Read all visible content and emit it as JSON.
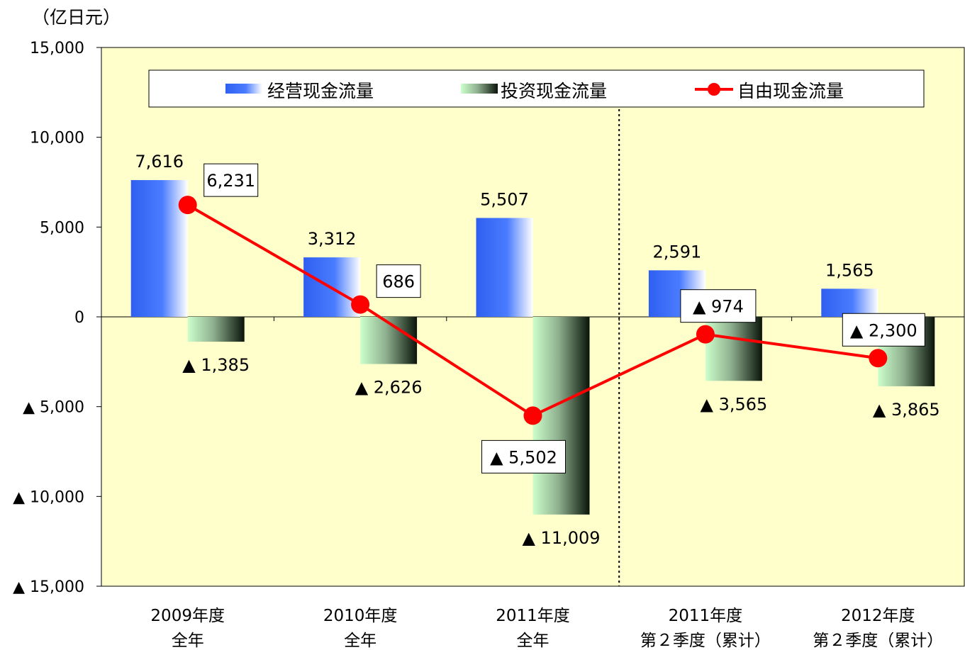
{
  "chart_data": {
    "type": "bar",
    "unit_label": "（亿日元）",
    "ylim": [
      -15000,
      15000
    ],
    "y_ticks": [
      {
        "value": 15000,
        "label": "15,000"
      },
      {
        "value": 10000,
        "label": "10,000"
      },
      {
        "value": 5000,
        "label": "5,000"
      },
      {
        "value": 0,
        "label": "0"
      },
      {
        "value": -5000,
        "label": "▲ 5,000"
      },
      {
        "value": -10000,
        "label": "▲ 10,000"
      },
      {
        "value": -15000,
        "label": "▲ 15,000"
      }
    ],
    "categories": [
      {
        "line1": "2009年度",
        "line2": "全年"
      },
      {
        "line1": "2010年度",
        "line2": "全年"
      },
      {
        "line1": "2011年度",
        "line2": "全年"
      },
      {
        "line1": "2011年度",
        "line2": "第２季度（累计）"
      },
      {
        "line1": "2012年度",
        "line2": "第２季度（累计）"
      }
    ],
    "legend_position": "top",
    "divider_after_category": 2,
    "series": [
      {
        "name": "经营现金流量",
        "type": "bar",
        "color": "#3366ff",
        "values": [
          7616,
          3312,
          5507,
          2591,
          1565
        ],
        "labels": [
          "7,616",
          "3,312",
          "5,507",
          "2,591",
          "1,565"
        ]
      },
      {
        "name": "投资现金流量",
        "type": "bar",
        "color": "#1a2a1a",
        "values": [
          -1385,
          -2626,
          -11009,
          -3565,
          -3865
        ],
        "labels": [
          "▲ 1,385",
          "▲ 2,626",
          "▲ 11,009",
          "▲ 3,565",
          "▲ 3,865"
        ]
      },
      {
        "name": "自由现金流量",
        "type": "line",
        "color": "#ff0000",
        "values": [
          6231,
          686,
          -5502,
          -974,
          -2300
        ],
        "labels": [
          "6,231",
          "686",
          "▲ 5,502",
          "▲ 974",
          "▲ 2,300"
        ]
      }
    ],
    "plot_background": "#ffffcc"
  }
}
